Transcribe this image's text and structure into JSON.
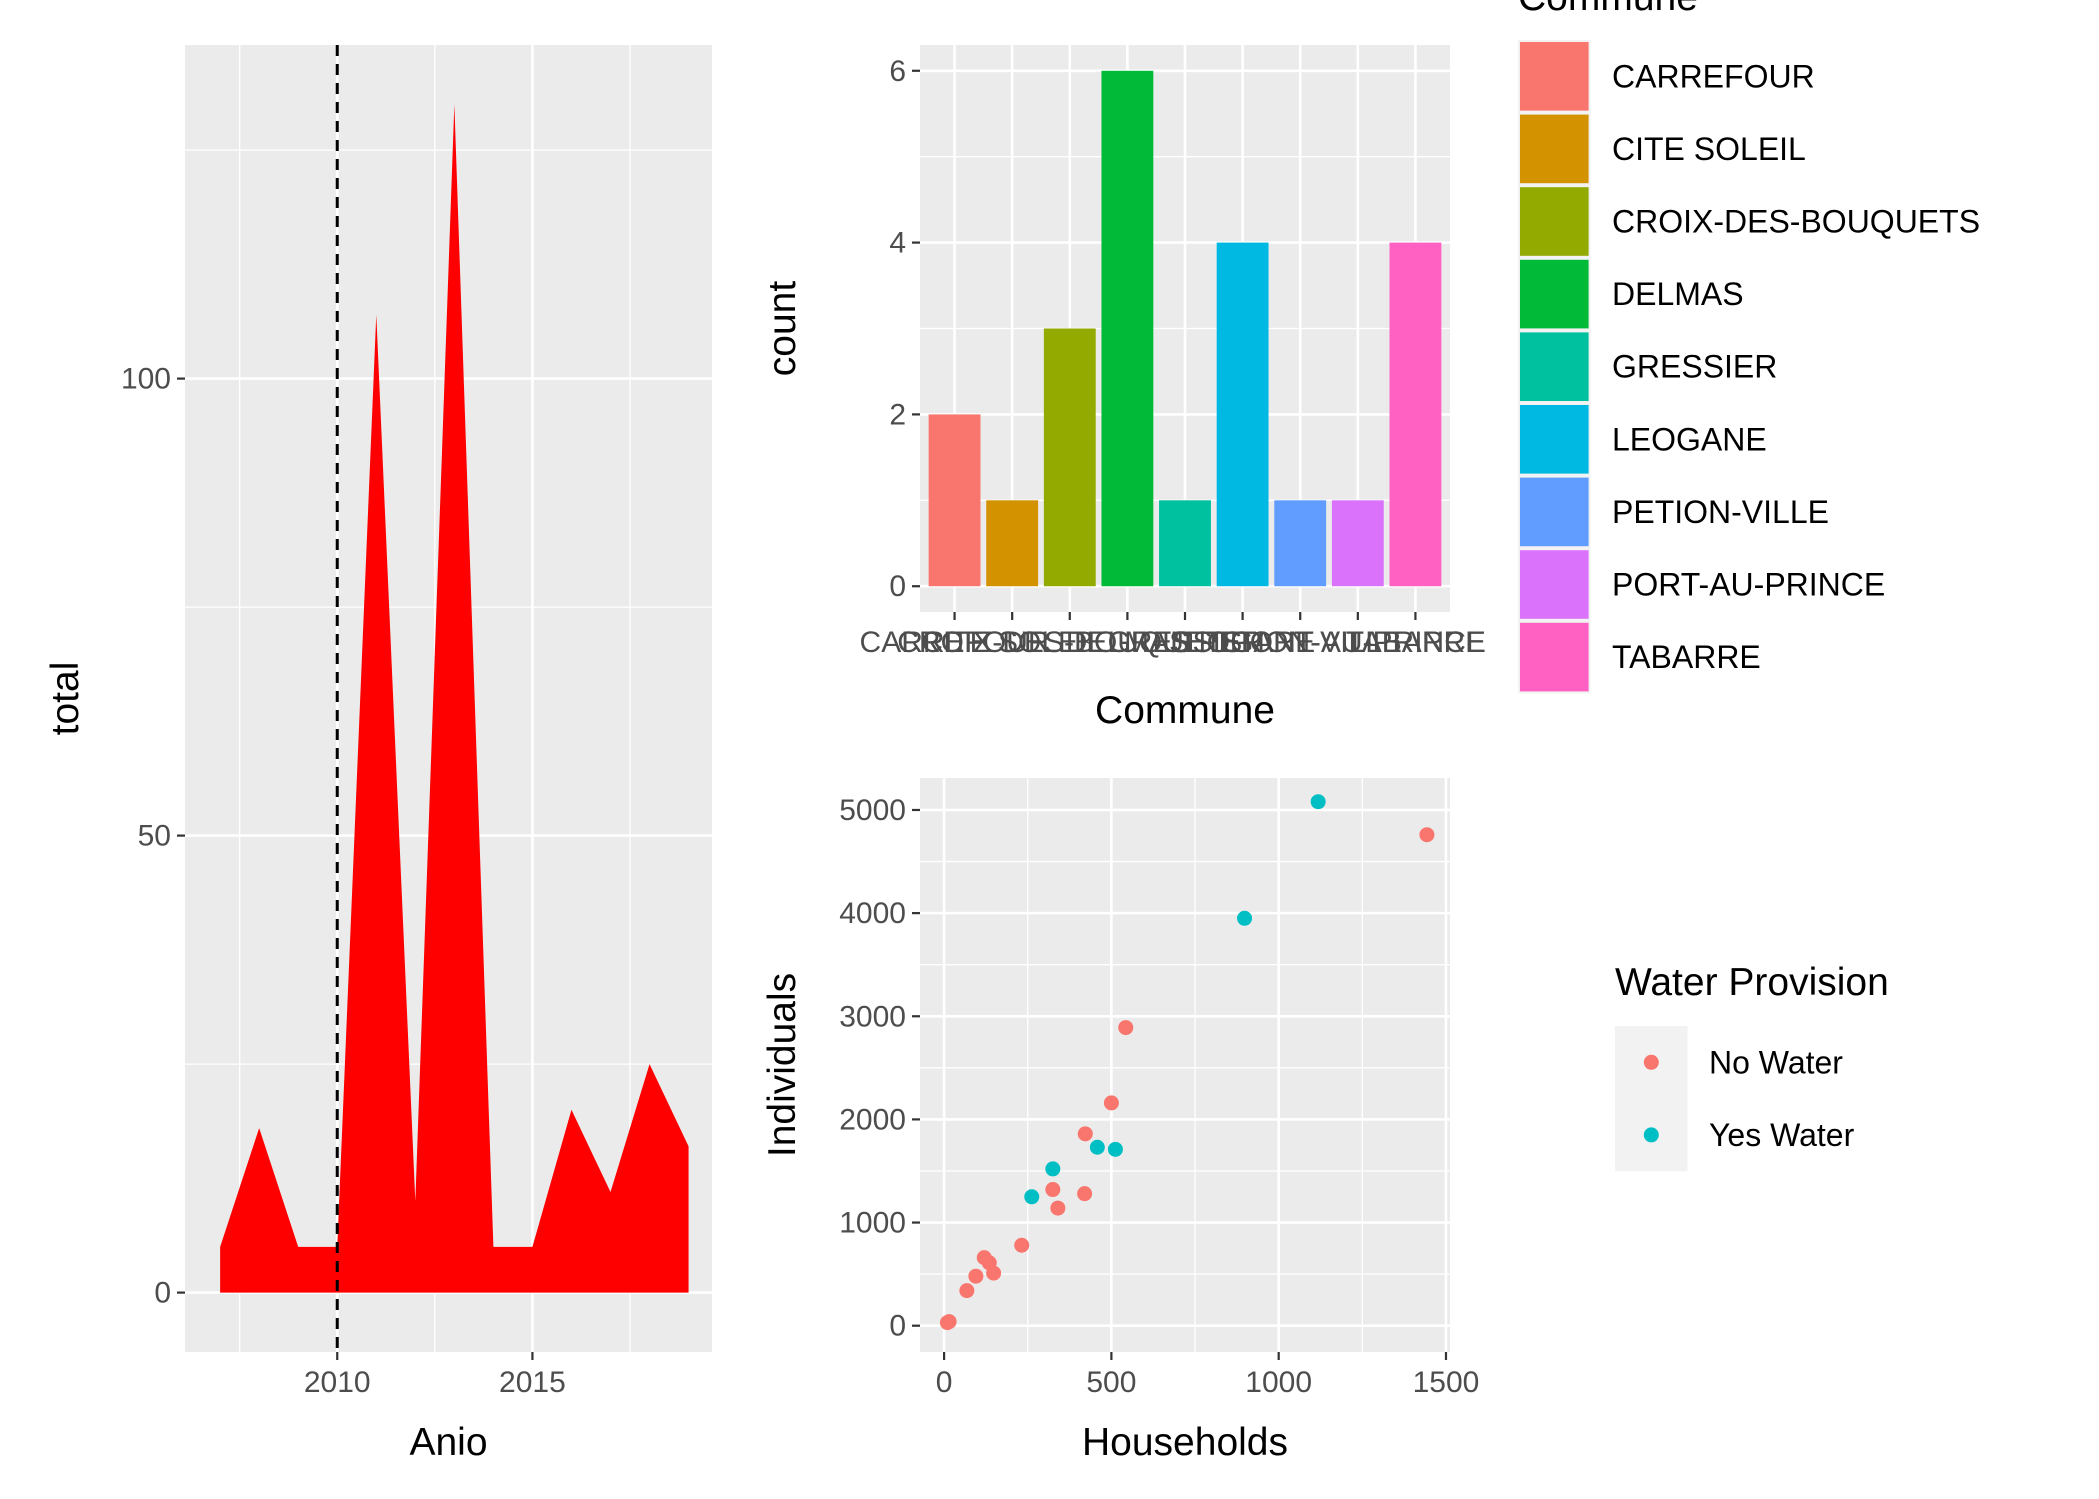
{
  "chart_data": [
    {
      "type": "area",
      "x": [
        2007,
        2008,
        2009,
        2010,
        2011,
        2012,
        2013,
        2014,
        2015,
        2016,
        2017,
        2018,
        2019
      ],
      "values": [
        5,
        18,
        5,
        5,
        107,
        10,
        130,
        5,
        5,
        20,
        11,
        25,
        16
      ],
      "fill_color": "#ff0000",
      "xlabel": "Anio",
      "ylabel": "total",
      "xlim": [
        2006.1,
        2019.6
      ],
      "ylim": [
        -6.5,
        136.5
      ],
      "x_ticks": [
        "2010",
        "2015"
      ],
      "y_ticks": [
        "0",
        "50",
        "100"
      ],
      "vline": {
        "x": 2010,
        "style": "dashed",
        "color": "#000000"
      },
      "grid": true
    },
    {
      "type": "bar",
      "categories": [
        "CARREFOUR",
        "CITE SOLEIL",
        "CROIX-DES-BOUQUETS",
        "DELMAS",
        "GRESSIER",
        "LEOGANE",
        "PETION-VILLE",
        "PORT-AU-PRINCE",
        "TABARRE"
      ],
      "values": [
        2,
        1,
        3,
        6,
        1,
        4,
        1,
        1,
        4
      ],
      "colors": [
        "#F8766D",
        "#D39200",
        "#93AA00",
        "#00BA38",
        "#00C19F",
        "#00B9E3",
        "#619CFF",
        "#DB72FB",
        "#FF61C3"
      ],
      "xlabel": "Commune",
      "ylabel": "count",
      "ylim": [
        -0.3,
        6.3
      ],
      "y_ticks": [
        "0",
        "2",
        "4",
        "6"
      ],
      "legend": {
        "title": "Commune",
        "position": "right"
      },
      "grid": true
    },
    {
      "type": "scatter",
      "xlabel": "Households",
      "ylabel": "Individuals",
      "xlim": [
        -72,
        1512
      ],
      "ylim": [
        -255,
        5310
      ],
      "x_ticks": [
        "0",
        "500",
        "1000",
        "1500"
      ],
      "y_ticks": [
        "0",
        "1000",
        "2000",
        "3000",
        "4000",
        "5000"
      ],
      "legend": {
        "title": "Water Provision",
        "position": "right"
      },
      "series": [
        {
          "name": "No Water",
          "color": "#F8766D",
          "x": [
            10,
            15,
            68,
            95,
            120,
            135,
            148,
            232,
            325,
            340,
            420,
            422,
            500,
            543,
            1443
          ],
          "y": [
            30,
            40,
            340,
            480,
            660,
            610,
            510,
            780,
            1320,
            1140,
            1280,
            1860,
            2160,
            2890,
            4760
          ]
        },
        {
          "name": "Yes Water",
          "color": "#00BFC4",
          "x": [
            262,
            325,
            458,
            512,
            898,
            1118
          ],
          "y": [
            1250,
            1520,
            1730,
            1710,
            3950,
            5080
          ]
        }
      ],
      "grid": true
    }
  ]
}
